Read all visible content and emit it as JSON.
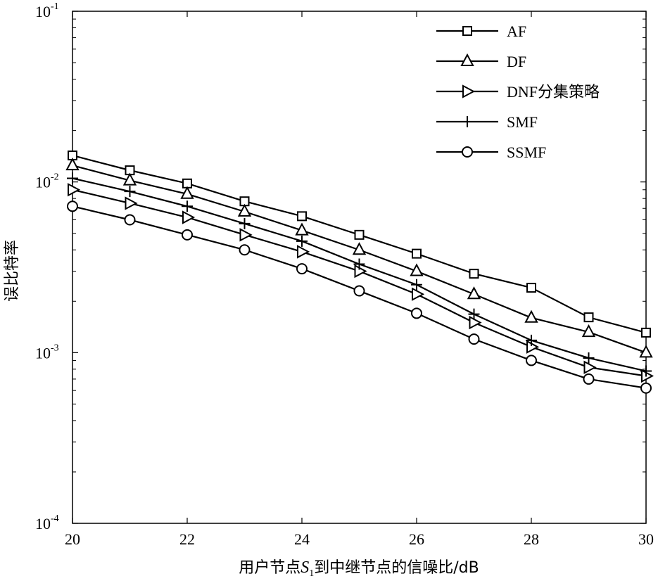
{
  "chart_data": {
    "type": "line",
    "xlabel_parts": [
      "用户节点",
      "S",
      "1",
      "到中继节点的信噪比/dB"
    ],
    "ylabel": "误比特率",
    "xlim": [
      20,
      30
    ],
    "ylim": [
      0.0001,
      0.1
    ],
    "yscale": "log",
    "xticks": [
      20,
      22,
      24,
      26,
      28,
      30
    ],
    "yticks": [
      {
        "value": 0.1,
        "base": "10",
        "exp": "-1"
      },
      {
        "value": 0.01,
        "base": "10",
        "exp": "-2"
      },
      {
        "value": 0.001,
        "base": "10",
        "exp": "-3"
      },
      {
        "value": 0.0001,
        "base": "10",
        "exp": "-4"
      }
    ],
    "grid": false,
    "legend_position": "top-right",
    "x": [
      20,
      21,
      22,
      23,
      24,
      25,
      26,
      27,
      28,
      29,
      30
    ],
    "series": [
      {
        "name": "AF",
        "marker": "square",
        "values": [
          0.0143,
          0.0117,
          0.0098,
          0.0077,
          0.0063,
          0.0049,
          0.0038,
          0.0029,
          0.0024,
          0.00161,
          0.00131
        ]
      },
      {
        "name": "DF",
        "marker": "triangle-up",
        "values": [
          0.0125,
          0.0102,
          0.0085,
          0.0067,
          0.0052,
          0.004,
          0.003,
          0.0022,
          0.0016,
          0.00132,
          0.001
        ]
      },
      {
        "name": "DNF分集策略",
        "marker": "triangle-right",
        "values": [
          0.009,
          0.0075,
          0.0062,
          0.0049,
          0.0039,
          0.003,
          0.0022,
          0.0015,
          0.00108,
          0.00082,
          0.00073
        ]
      },
      {
        "name": "SMF",
        "marker": "plus",
        "values": [
          0.0105,
          0.0088,
          0.0072,
          0.0057,
          0.0045,
          0.0033,
          0.0025,
          0.00168,
          0.00118,
          0.00093,
          0.00078
        ]
      },
      {
        "name": "SSMF",
        "marker": "circle",
        "values": [
          0.0072,
          0.006,
          0.0049,
          0.004,
          0.0031,
          0.0023,
          0.0017,
          0.0012,
          0.0009,
          0.0007,
          0.00062
        ]
      }
    ]
  }
}
